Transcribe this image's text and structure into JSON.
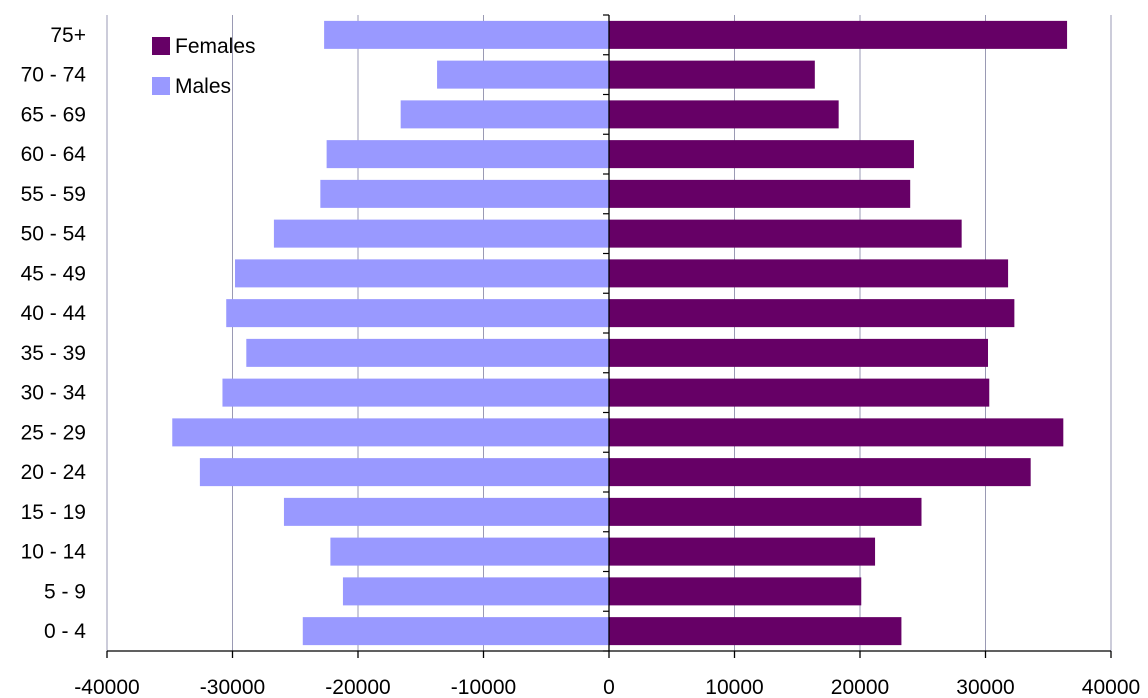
{
  "chart_data": {
    "type": "bar",
    "orientation": "horizontal",
    "title": "",
    "xlabel": "",
    "ylabel": "",
    "categories": [
      "0 - 4",
      "5 - 9",
      "10 - 14",
      "15 - 19",
      "20 - 24",
      "25 - 29",
      "30 - 34",
      "35 - 39",
      "40 - 44",
      "45 - 49",
      "50 - 54",
      "55 - 59",
      "60 - 64",
      "65 - 69",
      "70 - 74",
      "75+"
    ],
    "series": [
      {
        "name": "Females",
        "color": "#660066",
        "values": [
          23300,
          20100,
          21200,
          24900,
          33600,
          36200,
          30300,
          30200,
          32300,
          31800,
          28100,
          24000,
          24300,
          18300,
          16400,
          36500
        ]
      },
      {
        "name": "Males",
        "color": "#9999ff",
        "values": [
          -24400,
          -21200,
          -22200,
          -25900,
          -32600,
          -34800,
          -30800,
          -28900,
          -30500,
          -29800,
          -26700,
          -23000,
          -22500,
          -16600,
          -13700,
          -22700
        ]
      }
    ],
    "xlim": [
      -40000,
      40000
    ],
    "xticks": [
      -40000,
      -30000,
      -20000,
      -10000,
      0,
      10000,
      20000,
      30000,
      40000
    ],
    "grid": "vertical",
    "legend_position": "top-left"
  }
}
